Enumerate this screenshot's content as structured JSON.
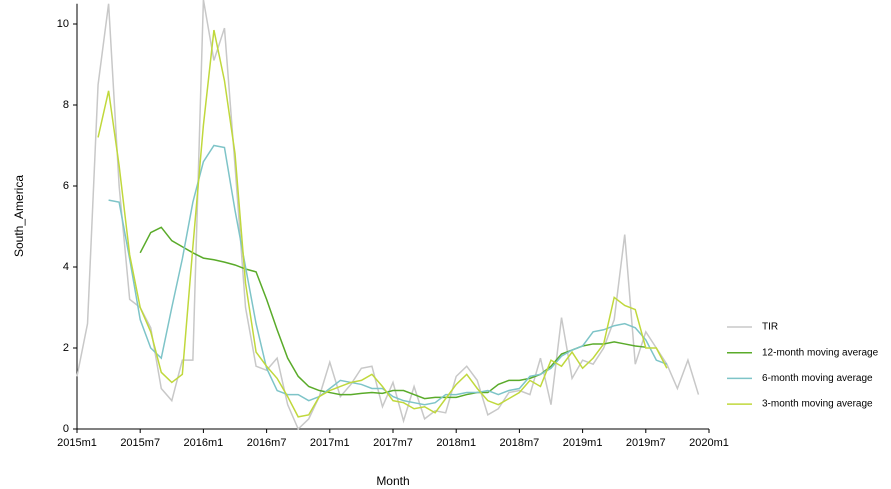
{
  "chart_data": {
    "type": "line",
    "x_label": "Month",
    "y_label": "South_America",
    "x": [
      0,
      1,
      2,
      3,
      4,
      5,
      6,
      7,
      8,
      9,
      10,
      11,
      12,
      13,
      14,
      15,
      16,
      17,
      18,
      19,
      20,
      21,
      22,
      23,
      24,
      25,
      26,
      27,
      28,
      29,
      30,
      31,
      32,
      33,
      34,
      35,
      36,
      37,
      38,
      39,
      40,
      41,
      42,
      43,
      44,
      45,
      46,
      47,
      48,
      49,
      50,
      51,
      52,
      53,
      54,
      55,
      56,
      57,
      58,
      59
    ],
    "xlim": [
      0,
      60
    ],
    "xticks": [
      {
        "value": 0,
        "label": "2015m1"
      },
      {
        "value": 6,
        "label": "2015m7"
      },
      {
        "value": 12,
        "label": "2016m1"
      },
      {
        "value": 18,
        "label": "2016m7"
      },
      {
        "value": 24,
        "label": "2017m1"
      },
      {
        "value": 30,
        "label": "2017m7"
      },
      {
        "value": 36,
        "label": "2018m1"
      },
      {
        "value": 42,
        "label": "2018m7"
      },
      {
        "value": 48,
        "label": "2019m1"
      },
      {
        "value": 54,
        "label": "2019m7"
      },
      {
        "value": 60,
        "label": "2020m1"
      }
    ],
    "ylim": [
      0,
      10.5
    ],
    "yticks": [
      0,
      2,
      4,
      6,
      8,
      10
    ],
    "series": [
      {
        "name": "TIR",
        "color": "#c8c8c8",
        "values": [
          1.3,
          2.6,
          8.5,
          10.5,
          6.0,
          3.2,
          3.0,
          2.5,
          1.0,
          0.7,
          1.7,
          1.7,
          10.6,
          9.1,
          9.9,
          6.5,
          3.0,
          1.55,
          1.45,
          1.75,
          0.6,
          0.0,
          0.25,
          0.8,
          1.65,
          0.8,
          1.1,
          1.5,
          1.55,
          0.55,
          1.15,
          0.2,
          1.05,
          0.25,
          0.45,
          0.4,
          1.3,
          1.55,
          1.2,
          0.35,
          0.5,
          0.9,
          0.95,
          0.85,
          1.75,
          0.6,
          2.75,
          1.25,
          1.7,
          1.6,
          2.0,
          2.7,
          4.8,
          1.6,
          2.4,
          2.0,
          1.6,
          1.0,
          1.7,
          0.85
        ]
      },
      {
        "name": "12-month moving average",
        "color": "#5aab2a",
        "values": [
          null,
          null,
          null,
          null,
          null,
          null,
          4.35,
          4.85,
          4.98,
          4.65,
          4.5,
          4.35,
          4.22,
          4.18,
          4.12,
          4.05,
          3.95,
          3.88,
          3.2,
          2.45,
          1.75,
          1.3,
          1.05,
          0.95,
          0.9,
          0.85,
          0.85,
          0.88,
          0.9,
          0.88,
          0.95,
          0.95,
          0.85,
          0.75,
          0.78,
          0.78,
          0.78,
          0.85,
          0.9,
          0.9,
          1.1,
          1.2,
          1.2,
          1.25,
          1.35,
          1.55,
          1.85,
          1.95,
          2.05,
          2.1,
          2.1,
          2.15,
          2.1,
          2.05,
          2.02,
          null,
          null,
          null,
          null,
          null
        ]
      },
      {
        "name": "6-month moving average",
        "color": "#7ec4c8",
        "values": [
          null,
          null,
          null,
          5.65,
          5.6,
          4.2,
          2.7,
          2.0,
          1.75,
          3.0,
          4.2,
          5.6,
          6.6,
          7.0,
          6.95,
          5.4,
          4.0,
          2.6,
          1.5,
          0.95,
          0.85,
          0.85,
          0.7,
          0.8,
          1.0,
          1.2,
          1.15,
          1.1,
          1.0,
          1.0,
          0.8,
          0.7,
          0.65,
          0.6,
          0.65,
          0.85,
          0.85,
          0.9,
          0.9,
          0.95,
          0.85,
          0.95,
          1.0,
          1.3,
          1.35,
          1.5,
          1.8,
          1.95,
          2.05,
          2.4,
          2.45,
          2.55,
          2.6,
          2.5,
          2.2,
          1.7,
          1.6,
          null,
          null,
          null
        ]
      },
      {
        "name": "3-month moving average",
        "color": "#c0d83c",
        "values": [
          null,
          null,
          7.2,
          8.35,
          6.5,
          4.3,
          3.0,
          2.4,
          1.4,
          1.15,
          1.35,
          4.5,
          7.5,
          9.85,
          8.6,
          6.8,
          3.6,
          1.9,
          1.55,
          1.25,
          0.8,
          0.3,
          0.35,
          0.8,
          0.95,
          1.05,
          1.15,
          1.2,
          1.35,
          1.05,
          0.7,
          0.65,
          0.5,
          0.55,
          0.4,
          0.75,
          1.1,
          1.35,
          1.0,
          0.7,
          0.6,
          0.75,
          0.9,
          1.2,
          1.05,
          1.7,
          1.55,
          1.9,
          1.5,
          1.75,
          2.1,
          3.25,
          3.05,
          2.95,
          2.0,
          2.0,
          1.5,
          null,
          null,
          null
        ]
      }
    ]
  }
}
